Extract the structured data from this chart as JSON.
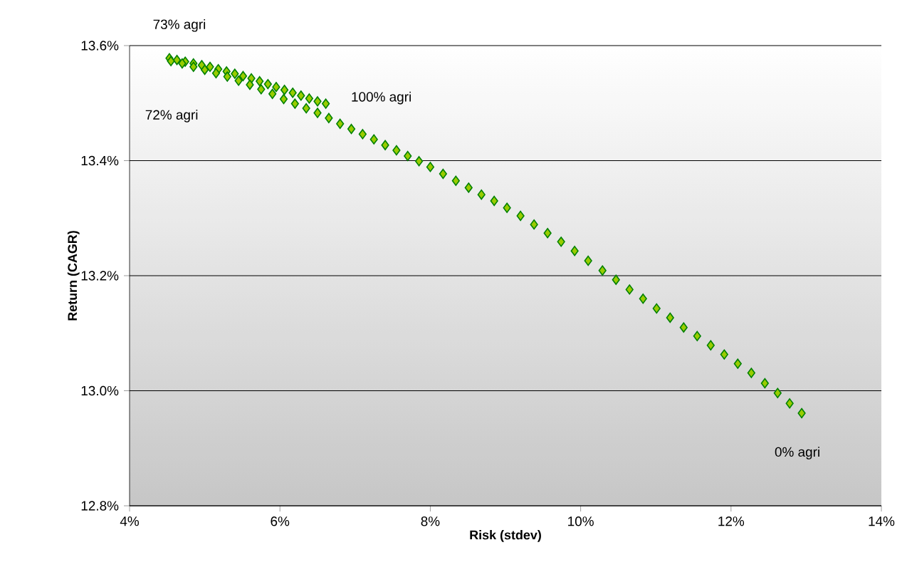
{
  "chart_data": {
    "type": "scatter",
    "xlabel": "Risk (stdev)",
    "ylabel": "Return (CAGR)",
    "series": [
      {
        "color": "#99cc00",
        "x": [
          6.61,
          6.5,
          6.39,
          6.28,
          6.17,
          6.06,
          5.95,
          5.84,
          5.73,
          5.62,
          5.51,
          5.4,
          5.29,
          5.18,
          5.07,
          4.96,
          4.85,
          4.74,
          4.63,
          4.53,
          4.55,
          4.7,
          4.85,
          5.0,
          5.15,
          5.3,
          5.45,
          5.6,
          5.75,
          5.9,
          6.05,
          6.2,
          6.35,
          6.5,
          6.65,
          6.8,
          6.95,
          7.1,
          7.25,
          7.4,
          7.55,
          7.7,
          7.85,
          8.0,
          8.17,
          8.34,
          8.51,
          8.68,
          8.85,
          9.02,
          9.2,
          9.38,
          9.56,
          9.74,
          9.92,
          10.1,
          10.29,
          10.47,
          10.65,
          10.83,
          11.01,
          11.19,
          11.37,
          11.55,
          11.73,
          11.91,
          12.09,
          12.27,
          12.45,
          12.62,
          12.78,
          12.94
        ],
        "values": [
          13.499,
          13.503,
          13.508,
          13.513,
          13.518,
          13.523,
          13.528,
          13.533,
          13.538,
          13.543,
          13.547,
          13.551,
          13.555,
          13.559,
          13.563,
          13.566,
          13.569,
          13.572,
          13.575,
          13.578,
          13.573,
          13.569,
          13.563,
          13.558,
          13.552,
          13.546,
          13.539,
          13.532,
          13.524,
          13.516,
          13.507,
          13.499,
          13.491,
          13.483,
          13.474,
          13.464,
          13.455,
          13.446,
          13.437,
          13.427,
          13.418,
          13.408,
          13.399,
          13.389,
          13.377,
          13.365,
          13.353,
          13.341,
          13.33,
          13.318,
          13.304,
          13.289,
          13.274,
          13.259,
          13.243,
          13.226,
          13.209,
          13.193,
          13.176,
          13.16,
          13.143,
          13.127,
          13.11,
          13.095,
          13.079,
          13.063,
          13.047,
          13.031,
          13.013,
          12.996,
          12.978,
          12.961
        ]
      }
    ],
    "marker": "diamond",
    "grid": "y",
    "xlim": [
      4,
      14
    ],
    "ylim": [
      12.8,
      13.6
    ],
    "xticks": [
      {
        "value": 4,
        "label": "4%"
      },
      {
        "value": 6,
        "label": "6%"
      },
      {
        "value": 8,
        "label": "8%"
      },
      {
        "value": 10,
        "label": "10%"
      },
      {
        "value": 12,
        "label": "12%"
      },
      {
        "value": 14,
        "label": "14%"
      }
    ],
    "yticks": [
      {
        "value": 12.8,
        "label": "12.8%"
      },
      {
        "value": 13.0,
        "label": "13.0%"
      },
      {
        "value": 13.2,
        "label": "13.2%"
      },
      {
        "value": 13.4,
        "label": "13.4%"
      },
      {
        "value": 13.6,
        "label": "13.6%"
      }
    ],
    "annotations": [
      {
        "text": "73% agri",
        "x": 4.53,
        "y": 13.578
      },
      "72% agri",
      {
        "text": "100% agri",
        "x": 6.61,
        "y": 13.499
      },
      {
        "text": "0% agri",
        "x": 12.94,
        "y": 12.961
      }
    ]
  }
}
